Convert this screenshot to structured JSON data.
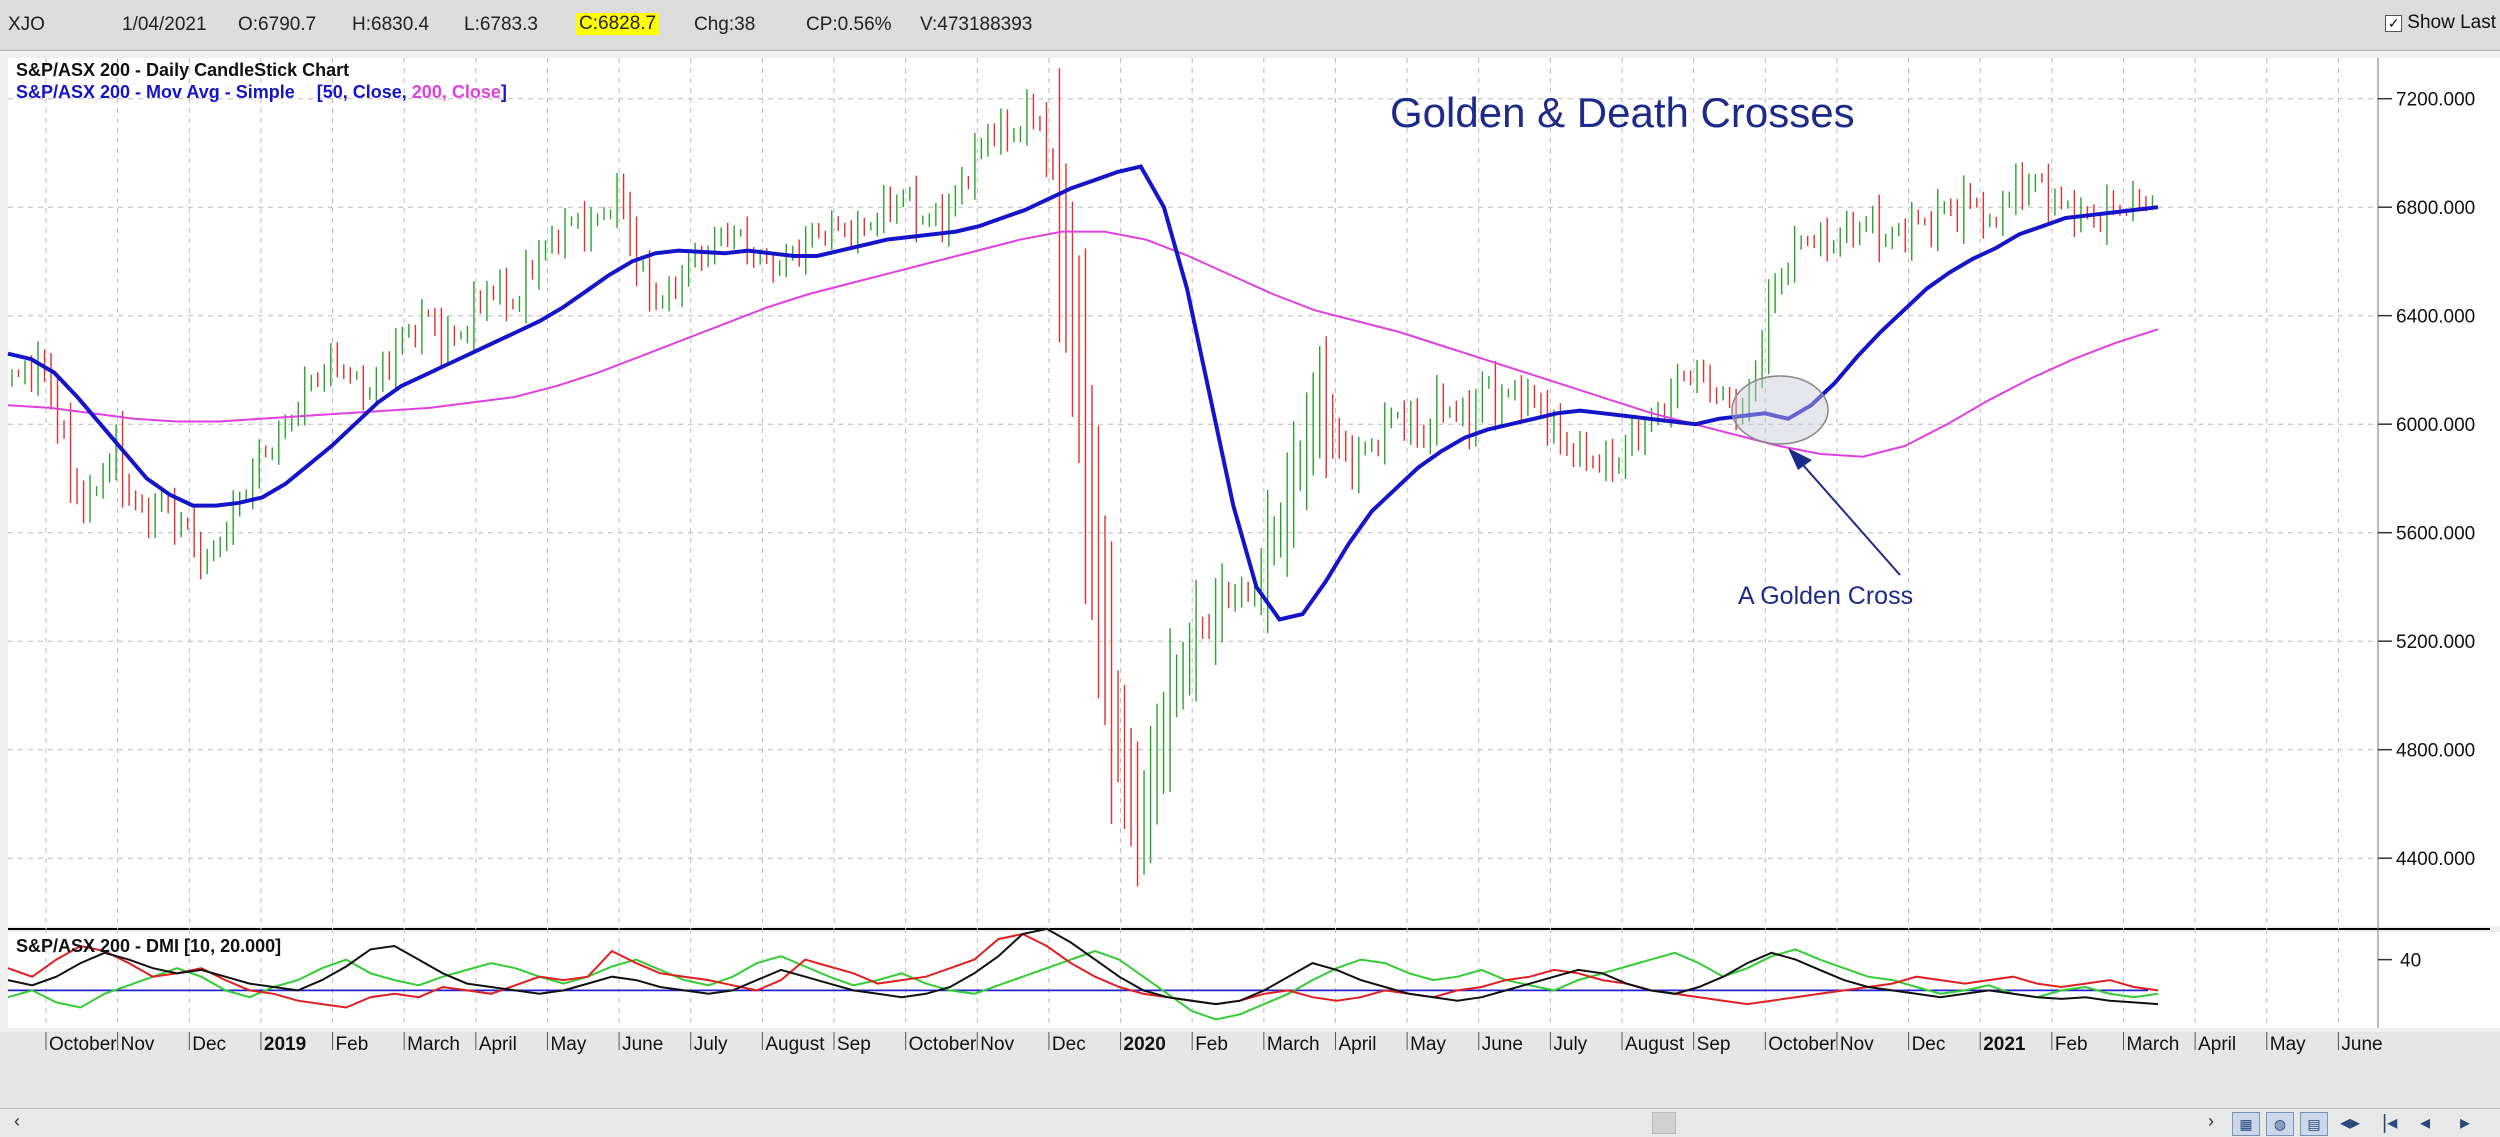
{
  "topbar": {
    "symbol": "XJO",
    "date": "1/04/2021",
    "open": "O:6790.7",
    "high": "H:6830.4",
    "low": "L:6783.3",
    "close": "C:6828.7",
    "change": "Chg:38",
    "change_pct": "CP:0.56%",
    "volume": "V:473188393",
    "show_last_label": "Show Last",
    "show_last_checked": true
  },
  "chart_data": [
    {
      "type": "candlestick",
      "title": "Golden & Death Crosses",
      "legend_line1": "S&P/ASX 200 - Daily CandleStick Chart",
      "legend_line2_prefix": "S&P/ASX 200 - Mov Avg - Simple",
      "legend_line2_a": "[50, Close, ",
      "legend_line2_b": "200, Close",
      "legend_line2_c": "]",
      "y_ticks": [
        "7200.000",
        "6800.000",
        "6400.000",
        "6000.000",
        "5600.000",
        "5200.000",
        "4800.000",
        "4400.000"
      ],
      "ylim": [
        4150,
        7350
      ],
      "annotation": "A Golden Cross",
      "series": [
        {
          "name": "Price",
          "values": [
            6160,
            6200,
            6220,
            6050,
            5800,
            5680,
            5820,
            5900,
            5720,
            5650,
            5720,
            5650,
            5600,
            5470,
            5580,
            5680,
            5800,
            5900,
            5950,
            6050,
            6150,
            6200,
            6230,
            6150,
            6120,
            6200,
            6300,
            6350,
            6400,
            6300,
            6320,
            6400,
            6500,
            6480,
            6430,
            6600,
            6650,
            6720,
            6750,
            6720,
            6800,
            6840,
            6600,
            6480,
            6450,
            6550,
            6620,
            6640,
            6720,
            6680,
            6620,
            6580,
            6600,
            6650,
            6700,
            6720,
            6720,
            6700,
            6760,
            6800,
            6850,
            6760,
            6750,
            6780,
            6900,
            7000,
            7100,
            7050,
            7120,
            7150,
            6900,
            6500,
            6000,
            5400,
            4950,
            4650,
            4500,
            4800,
            5000,
            5150,
            5250,
            5300,
            5400,
            5350,
            5450,
            5600,
            5750,
            5950,
            6100,
            5950,
            5850,
            5900,
            5950,
            6050,
            6000,
            5950,
            6080,
            6050,
            6000,
            6150,
            6080,
            6120,
            6100,
            6050,
            5950,
            5900,
            5880,
            5850,
            5860,
            5950,
            6000,
            6050,
            6150,
            6200,
            6150,
            6100,
            6050,
            6100,
            6400,
            6550,
            6650,
            6700,
            6650,
            6700,
            6720,
            6750,
            6680,
            6700,
            6750,
            6730,
            6800,
            6780,
            6850,
            6700,
            6830,
            6870,
            6900,
            6850,
            6800,
            6780,
            6750,
            6790,
            6800,
            6820,
            6830
          ]
        },
        {
          "name": "SMA 50",
          "values": [
            6260,
            6240,
            6190,
            6100,
            6000,
            5900,
            5800,
            5740,
            5700,
            5700,
            5710,
            5730,
            5780,
            5850,
            5920,
            6000,
            6080,
            6140,
            6180,
            6220,
            6260,
            6300,
            6340,
            6380,
            6430,
            6490,
            6550,
            6600,
            6630,
            6640,
            6635,
            6630,
            6640,
            6630,
            6620,
            6620,
            6640,
            6660,
            6680,
            6690,
            6700,
            6710,
            6730,
            6760,
            6790,
            6830,
            6870,
            6900,
            6930,
            6950,
            6800,
            6500,
            6100,
            5700,
            5400,
            5280,
            5300,
            5420,
            5560,
            5680,
            5760,
            5840,
            5900,
            5950,
            5980,
            6000,
            6020,
            6040,
            6050,
            6040,
            6030,
            6020,
            6010,
            6000,
            6020,
            6030,
            6040,
            6020,
            6070,
            6150,
            6250,
            6340,
            6420,
            6500,
            6560,
            6610,
            6650,
            6700,
            6730,
            6760,
            6770,
            6780,
            6790,
            6800
          ]
        },
        {
          "name": "SMA 200",
          "values": [
            6070,
            6060,
            6040,
            6020,
            6010,
            6010,
            6020,
            6030,
            6040,
            6050,
            6060,
            6080,
            6100,
            6140,
            6190,
            6250,
            6310,
            6370,
            6430,
            6480,
            6520,
            6560,
            6600,
            6640,
            6680,
            6710,
            6710,
            6680,
            6620,
            6550,
            6480,
            6420,
            6380,
            6340,
            6290,
            6240,
            6190,
            6140,
            6090,
            6040,
            6000,
            5960,
            5920,
            5890,
            5880,
            5920,
            6000,
            6090,
            6170,
            6240,
            6300,
            6350
          ]
        }
      ]
    },
    {
      "type": "line",
      "legend": "S&P/ASX 200 - DMI [10, 20.000]",
      "y_ticks": [
        "40"
      ],
      "ylim": [
        0,
        55
      ],
      "reference_line": 22,
      "series": [
        {
          "name": "+DI",
          "values": [
            18,
            22,
            15,
            12,
            20,
            25,
            30,
            35,
            30,
            22,
            18,
            24,
            28,
            35,
            40,
            32,
            28,
            25,
            30,
            34,
            38,
            35,
            30,
            26,
            30,
            36,
            40,
            34,
            28,
            25,
            30,
            38,
            42,
            36,
            30,
            25,
            28,
            32,
            26,
            22,
            20,
            25,
            30,
            35,
            40,
            45,
            40,
            30,
            20,
            10,
            5,
            8,
            14,
            20,
            28,
            35,
            40,
            38,
            32,
            28,
            30,
            34,
            28,
            25,
            22,
            28,
            32,
            36,
            40,
            44,
            38,
            30,
            35,
            42,
            46,
            40,
            35,
            30,
            28,
            24,
            20,
            22,
            25,
            20,
            18,
            22,
            24,
            20,
            18,
            20
          ]
        },
        {
          "name": "-DI",
          "values": [
            35,
            30,
            40,
            48,
            45,
            38,
            30,
            32,
            35,
            28,
            22,
            20,
            16,
            14,
            12,
            18,
            20,
            18,
            24,
            22,
            20,
            25,
            30,
            28,
            30,
            45,
            38,
            32,
            30,
            28,
            25,
            22,
            28,
            40,
            36,
            32,
            26,
            28,
            30,
            35,
            40,
            52,
            55,
            48,
            38,
            30,
            24,
            20,
            18,
            16,
            14,
            16,
            20,
            22,
            18,
            16,
            18,
            22,
            20,
            18,
            22,
            24,
            28,
            30,
            34,
            32,
            28,
            26,
            22,
            20,
            18,
            16,
            14,
            16,
            18,
            20,
            22,
            24,
            26,
            30,
            28,
            26,
            28,
            30,
            26,
            24,
            26,
            28,
            24,
            22
          ]
        },
        {
          "name": "ADX",
          "values": [
            28,
            25,
            30,
            38,
            44,
            40,
            35,
            32,
            34,
            30,
            26,
            24,
            22,
            28,
            36,
            46,
            48,
            40,
            32,
            26,
            24,
            22,
            20,
            22,
            26,
            30,
            28,
            24,
            22,
            20,
            22,
            28,
            34,
            30,
            26,
            22,
            20,
            18,
            20,
            24,
            32,
            42,
            55,
            58,
            50,
            40,
            30,
            22,
            18,
            16,
            14,
            16,
            22,
            30,
            38,
            34,
            28,
            24,
            20,
            18,
            16,
            18,
            22,
            26,
            30,
            34,
            32,
            26,
            22,
            20,
            24,
            30,
            38,
            44,
            40,
            34,
            28,
            24,
            22,
            20,
            18,
            20,
            22,
            20,
            18,
            17,
            18,
            16,
            15,
            14
          ]
        }
      ]
    }
  ],
  "x_labels": [
    {
      "t": "October",
      "b": false
    },
    {
      "t": "Nov",
      "b": false
    },
    {
      "t": "Dec",
      "b": false
    },
    {
      "t": "2019",
      "b": true
    },
    {
      "t": "Feb",
      "b": false
    },
    {
      "t": "March",
      "b": false
    },
    {
      "t": "April",
      "b": false
    },
    {
      "t": "May",
      "b": false
    },
    {
      "t": "June",
      "b": false
    },
    {
      "t": "July",
      "b": false
    },
    {
      "t": "August",
      "b": false
    },
    {
      "t": "Sep",
      "b": false
    },
    {
      "t": "October",
      "b": false
    },
    {
      "t": "Nov",
      "b": false
    },
    {
      "t": "Dec",
      "b": false
    },
    {
      "t": "2020",
      "b": true
    },
    {
      "t": "Feb",
      "b": false
    },
    {
      "t": "March",
      "b": false
    },
    {
      "t": "April",
      "b": false
    },
    {
      "t": "May",
      "b": false
    },
    {
      "t": "June",
      "b": false
    },
    {
      "t": "July",
      "b": false
    },
    {
      "t": "August",
      "b": false
    },
    {
      "t": "Sep",
      "b": false
    },
    {
      "t": "October",
      "b": false
    },
    {
      "t": "Nov",
      "b": false
    },
    {
      "t": "Dec",
      "b": false
    },
    {
      "t": "2021",
      "b": true
    },
    {
      "t": "Feb",
      "b": false
    },
    {
      "t": "March",
      "b": false
    },
    {
      "t": "April",
      "b": false
    },
    {
      "t": "May",
      "b": false
    },
    {
      "t": "June",
      "b": false
    }
  ],
  "colors": {
    "candle_up": "#2ca02c",
    "candle_down": "#e03030",
    "sma50": "#1414c8",
    "sma200": "#e040e0",
    "plus_di": "#33cc33",
    "minus_di": "#e02020",
    "adx": "#111111",
    "dmi_ref": "#2020cc",
    "title": "#1c2a8a",
    "annotation": "#1c2a8a",
    "grid": "#bbbbbb"
  },
  "bottom_bar": {
    "left_arrow": "‹",
    "right_arrow": "›"
  }
}
